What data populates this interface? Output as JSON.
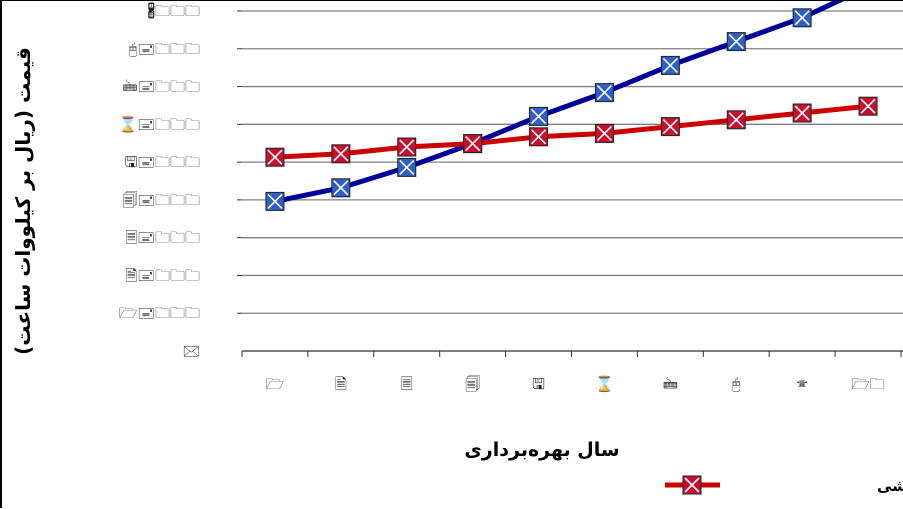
{
  "chart_data": {
    "type": "line",
    "title": "",
    "xlabel": "سال بهره‌برداری",
    "ylabel": "قیمت (ریال بر کیلووات ساعت)",
    "x_ticks": [
      "🗁",
      "🗎",
      "🗏",
      "🗐",
      "🖫",
      "⌛",
      "🖮",
      "🖰",
      "🕾",
      "🗁🗀"
    ],
    "y_ticks": [
      "🖁🗀🗀🗀",
      "🖰🖃🗀🗀🗀",
      "🖮🖃🗀🗀🗀",
      "⌛🖃🗀🗀🗀",
      "🖫🖃🗀🗀🗀",
      "🗐🖃🗀🗀🗀",
      "🗏🖃🗀🗀🗀",
      "🗎🖃🗀🗀🗀",
      "🗁🖃🗀🗀🗀",
      "🖂"
    ],
    "ylim": [
      0,
      10
    ],
    "grid": true,
    "legend_position": "bottom-right",
    "series": [
      {
        "name": "",
        "color": "#000099",
        "marker_fill": "#2F5FC8",
        "values": [
          4.4,
          4.8,
          5.4,
          6.1,
          6.9,
          7.6,
          8.4,
          9.1,
          9.8,
          10.7
        ]
      },
      {
        "name": "مدل قیمت دو بخشی",
        "color": "#CC0000",
        "marker_fill": "#C8102E",
        "values": [
          5.7,
          5.8,
          6.0,
          6.1,
          6.3,
          6.4,
          6.6,
          6.8,
          7.0,
          7.2
        ]
      }
    ]
  }
}
